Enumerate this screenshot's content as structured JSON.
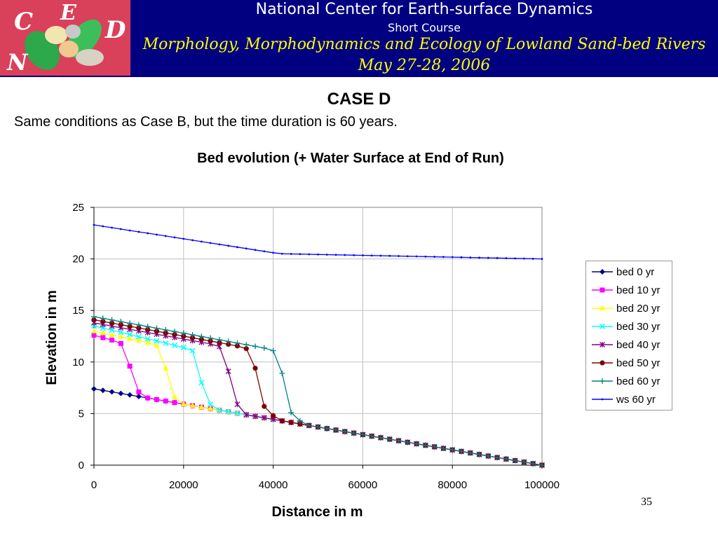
{
  "header": {
    "logo_letters": [
      "C",
      "E",
      "D",
      "N"
    ],
    "organization": "National Center for Earth-surface Dynamics",
    "course": "Short Course",
    "title": "Morphology, Morphodynamics and Ecology of Lowland Sand-bed Rivers",
    "date": "May 27-28, 2006",
    "background_color": "#000080",
    "title_color": "#ffff00"
  },
  "slide": {
    "title": "CASE D",
    "subtitle": "Same conditions as Case B, but the time duration is 60 years.",
    "page_number": "35"
  },
  "legend": {
    "items": [
      {
        "label": "bed 0 yr"
      },
      {
        "label": "bed 10 yr"
      },
      {
        "label": "bed 20 yr"
      },
      {
        "label": "bed 30 yr"
      },
      {
        "label": "bed 40 yr"
      },
      {
        "label": "bed 50 yr"
      },
      {
        "label": "bed 60 yr"
      },
      {
        "label": "ws 60 yr"
      }
    ]
  },
  "chart_data": {
    "type": "line",
    "title": "Bed evolution (+ Water Surface at End of Run)",
    "xlabel": "Distance in m",
    "ylabel": "Elevation in m",
    "xlim": [
      0,
      100000
    ],
    "ylim": [
      0,
      25
    ],
    "xticks": [
      "0",
      "20000",
      "40000",
      "60000",
      "80000",
      "100000"
    ],
    "yticks": [
      "0",
      "5",
      "10",
      "15",
      "20",
      "25"
    ],
    "grid": true,
    "legend_position": "right",
    "point_spacing_m": 2000,
    "series": [
      {
        "name": "bed 0 yr",
        "color": "#000080",
        "marker": "diamond",
        "front_x": 0,
        "front_top": 7.4,
        "front_base": 7.4
      },
      {
        "name": "bed 10 yr",
        "color": "#ff00ff",
        "marker": "square",
        "front_x": 10000,
        "front_top": 12.6,
        "front_base": 6.6,
        "transition": [
          [
            6000,
            11.8
          ],
          [
            8000,
            9.6
          ],
          [
            10000,
            7.1
          ]
        ]
      },
      {
        "name": "bed 20 yr",
        "color": "#ffff00",
        "marker": "triangle",
        "front_x": 18000,
        "front_top": 13.0,
        "front_base": 6.2,
        "transition": [
          [
            14000,
            11.6
          ],
          [
            16000,
            9.4
          ],
          [
            18000,
            6.6
          ]
        ]
      },
      {
        "name": "bed 30 yr",
        "color": "#00ffff",
        "marker": "x",
        "front_x": 26000,
        "front_top": 13.5,
        "front_base": 5.8,
        "transition": [
          [
            22000,
            11.1
          ],
          [
            24000,
            8.0
          ],
          [
            26000,
            5.9
          ]
        ]
      },
      {
        "name": "bed 40 yr",
        "color": "#800080",
        "marker": "star",
        "front_x": 32000,
        "front_top": 13.8,
        "front_base": 5.3,
        "transition": [
          [
            28000,
            11.5
          ],
          [
            30000,
            9.1
          ],
          [
            32000,
            5.9
          ]
        ]
      },
      {
        "name": "bed 50 yr",
        "color": "#800000",
        "marker": "circle",
        "front_x": 40000,
        "front_top": 14.1,
        "front_base": 4.7,
        "transition": [
          [
            34000,
            11.3
          ],
          [
            36000,
            9.4
          ],
          [
            38000,
            5.7
          ],
          [
            40000,
            4.8
          ]
        ]
      },
      {
        "name": "bed 60 yr",
        "color": "#008080",
        "marker": "plus",
        "front_x": 46000,
        "front_top": 14.4,
        "front_base": 4.2,
        "transition": [
          [
            40000,
            11.1
          ],
          [
            42000,
            8.9
          ],
          [
            44000,
            5.1
          ],
          [
            46000,
            4.3
          ]
        ]
      },
      {
        "name": "ws 60 yr",
        "color": "#0000ff",
        "marker": "dot",
        "ws_points": [
          [
            0,
            23.3
          ],
          [
            40000,
            20.6
          ],
          [
            42000,
            20.5
          ],
          [
            100000,
            20.0
          ]
        ]
      }
    ]
  }
}
